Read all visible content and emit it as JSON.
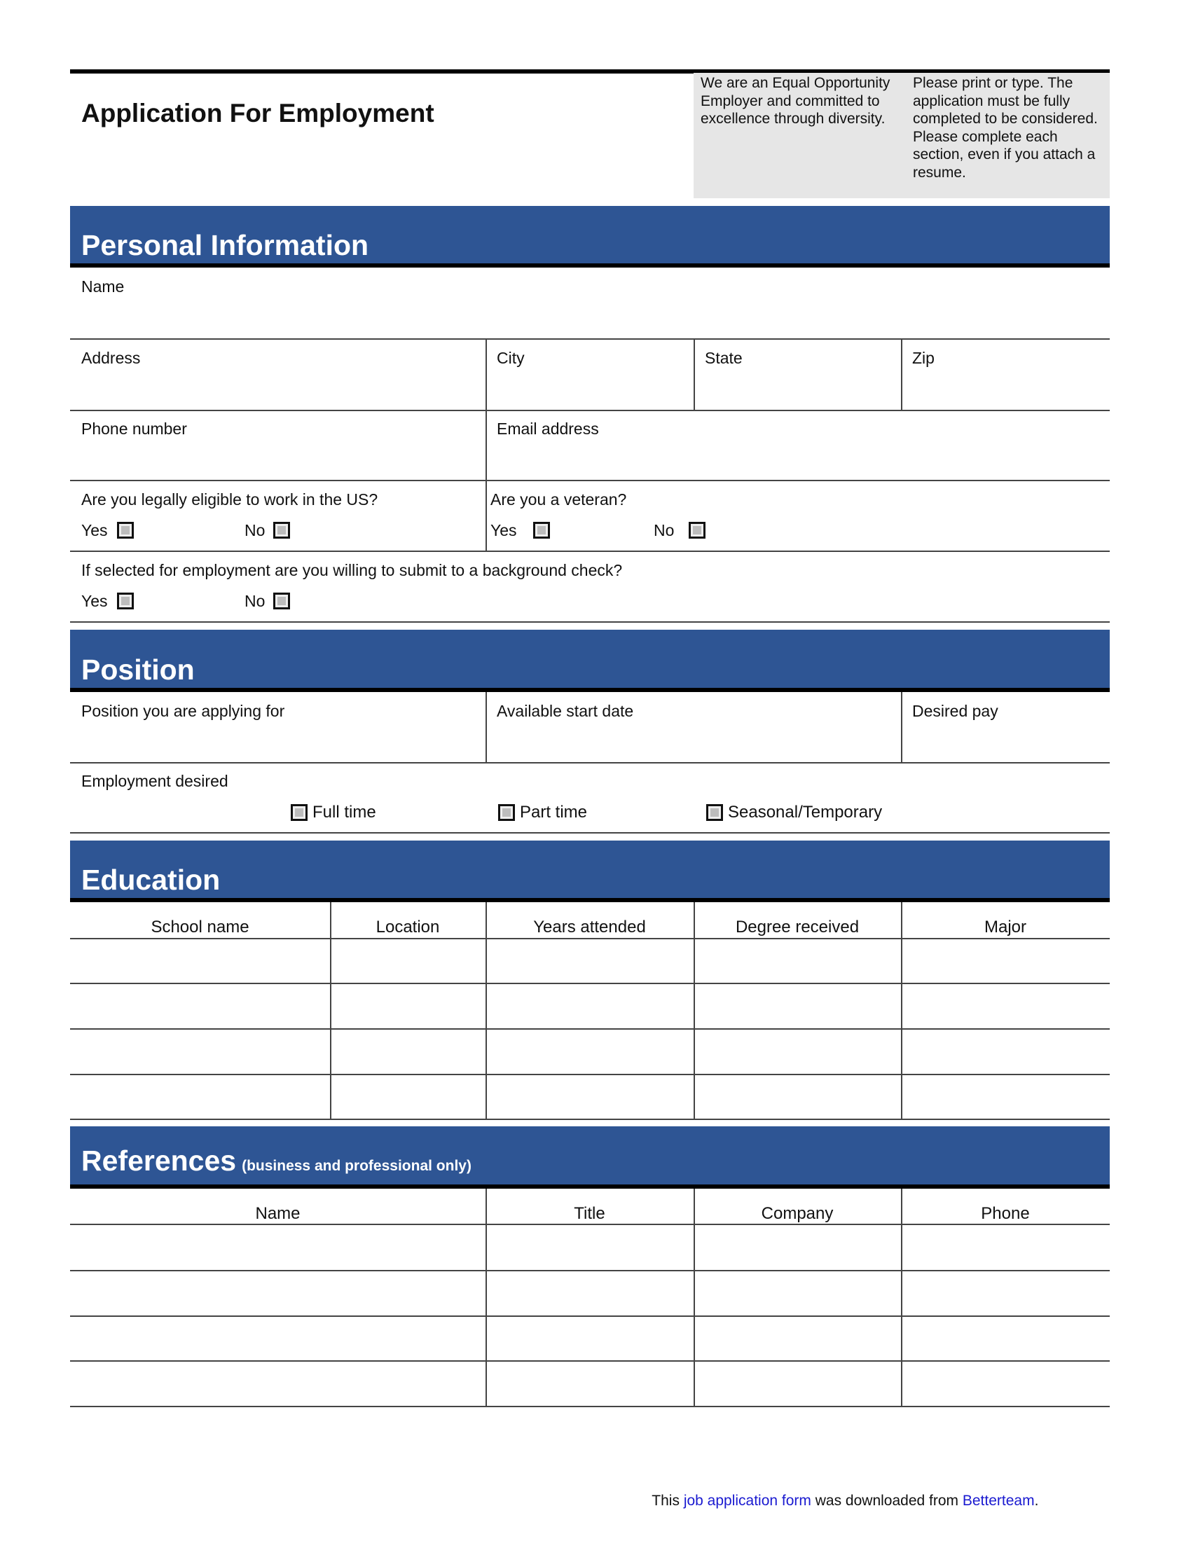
{
  "header": {
    "title": "Application For Employment",
    "note_left": "We are an Equal Opportunity Employer and committed to excellence through diversity.",
    "note_right": "Please print or type. The application must be fully completed to be considered. Please complete each section, even if you attach a resume."
  },
  "personal": {
    "heading": "Personal Information",
    "name": "Name",
    "address": "Address",
    "city": "City",
    "state": "State",
    "zip": "Zip",
    "phone": "Phone number",
    "email": "Email address",
    "eligible_q": "Are you legally eligible to work in the US?",
    "veteran_q": "Are you a veteran?",
    "background_q": "If selected for employment are you willing to submit to a background check?",
    "yes": "Yes",
    "no": "No"
  },
  "position": {
    "heading": "Position",
    "applying_for": "Position you are applying for",
    "start_date": "Available start date",
    "desired_pay": "Desired pay",
    "employment_desired": "Employment desired",
    "options": [
      "Full time",
      "Part time",
      "Seasonal/Temporary"
    ]
  },
  "education": {
    "heading": "Education",
    "columns": [
      "School name",
      "Location",
      "Years attended",
      "Degree received",
      "Major"
    ]
  },
  "references": {
    "heading": "References",
    "subheading": "(business and professional only)",
    "columns": [
      "Name",
      "Title",
      "Company",
      "Phone"
    ]
  },
  "footer": {
    "prefix": "This ",
    "link1": "job application form",
    "middle": " was downloaded from ",
    "link2": "Betterteam",
    "suffix": "."
  },
  "colors": {
    "section_band": "#2e5594",
    "note_box": "#e6e6e6",
    "link": "#1a1ad0"
  }
}
